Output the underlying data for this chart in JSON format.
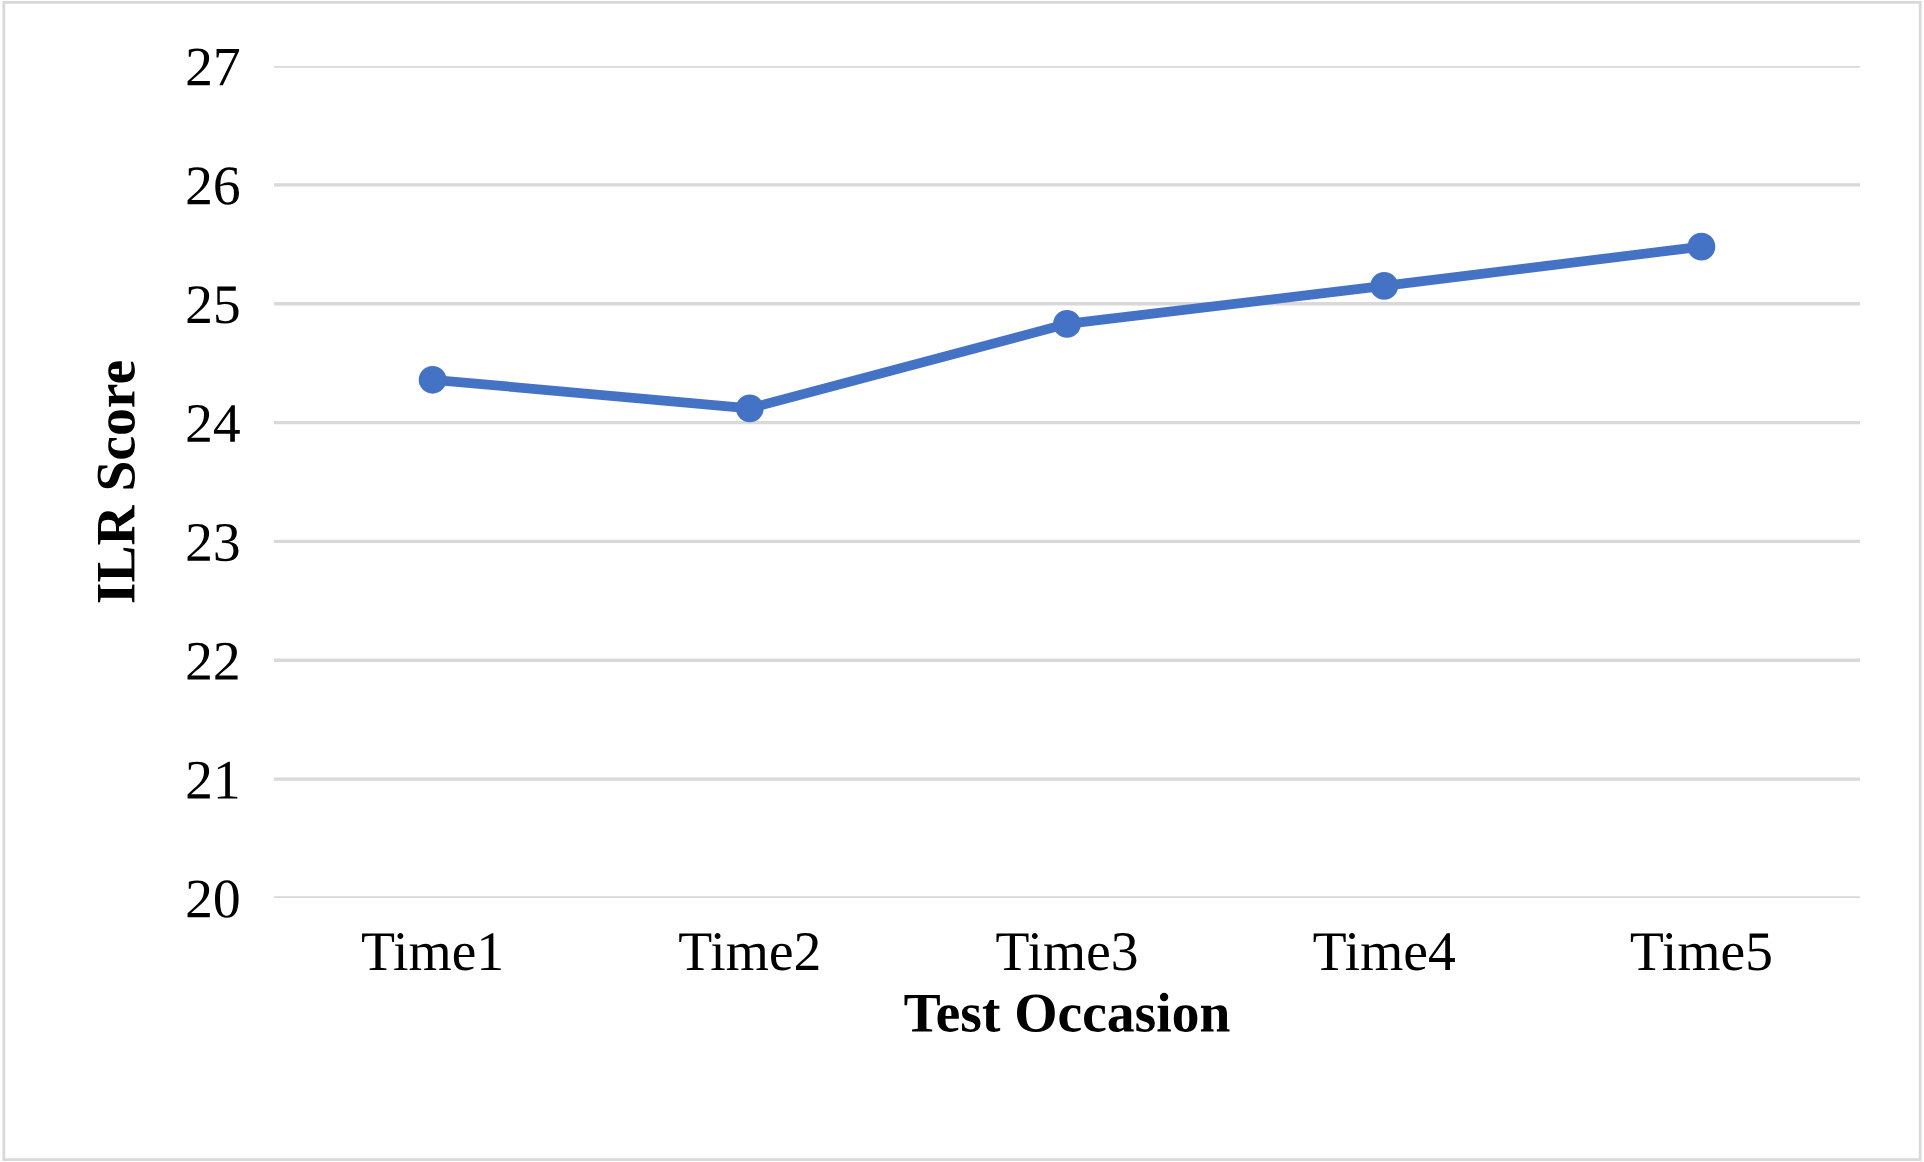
{
  "chart_data": {
    "type": "line",
    "xlabel": "Test Occasion",
    "ylabel": "ILR Score",
    "categories": [
      "Time1",
      "Time2",
      "Time3",
      "Time4",
      "Time5"
    ],
    "series": [
      {
        "color": "#4472c4",
        "values": [
          24.36,
          24.12,
          24.83,
          25.15,
          25.48
        ]
      }
    ],
    "ylim": [
      20,
      27
    ],
    "yticks": [
      20,
      21,
      22,
      23,
      24,
      25,
      26,
      27
    ],
    "grid": "y",
    "marker": "circle",
    "line_style": "solid"
  }
}
